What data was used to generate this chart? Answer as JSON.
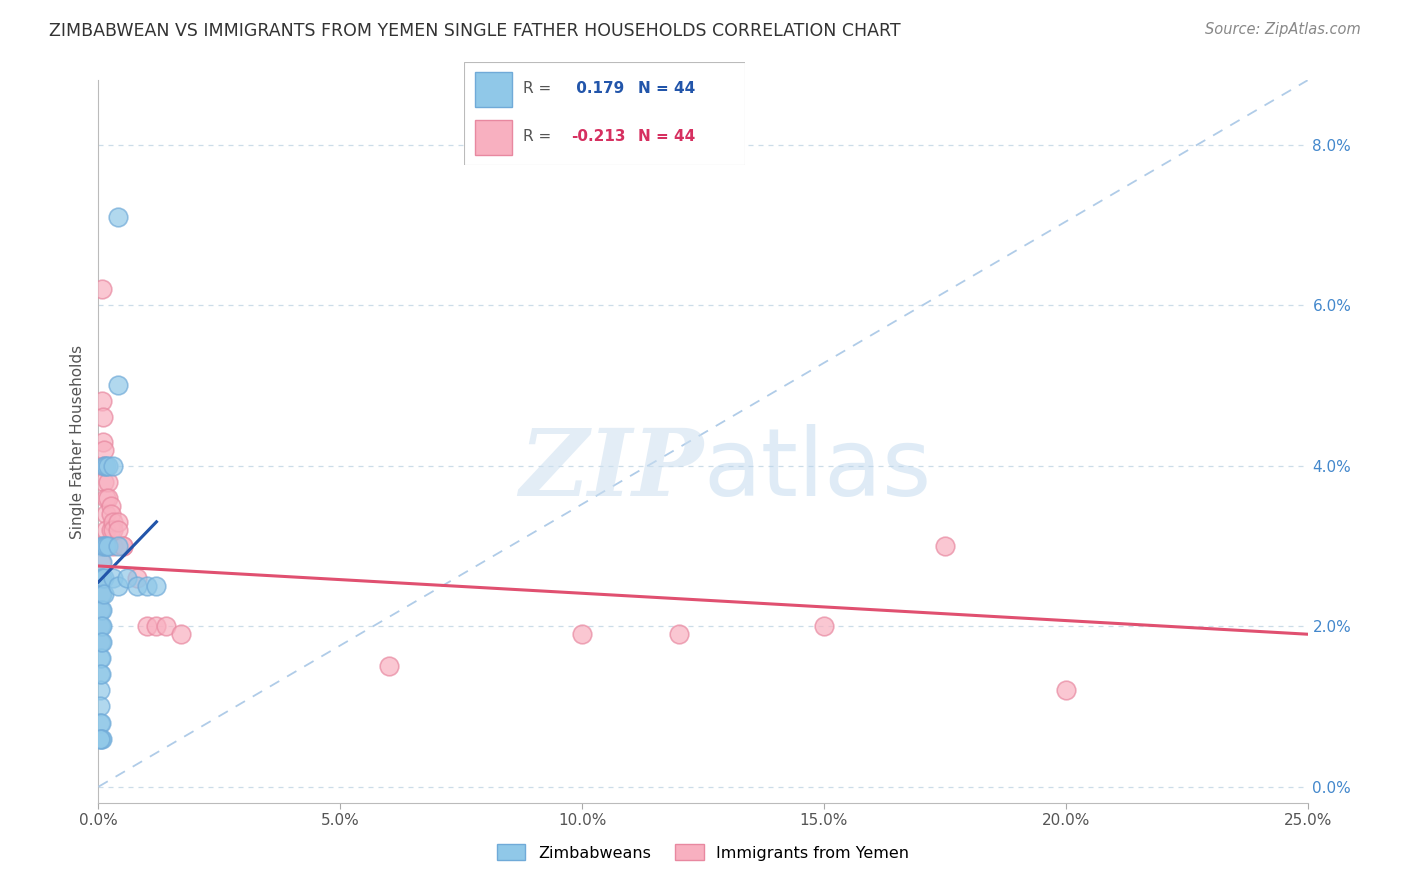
{
  "title": "ZIMBABWEAN VS IMMIGRANTS FROM YEMEN SINGLE FATHER HOUSEHOLDS CORRELATION CHART",
  "source": "Source: ZipAtlas.com",
  "ylabel": "Single Father Households",
  "xlim": [
    0.0,
    0.25
  ],
  "ylim": [
    -0.002,
    0.088
  ],
  "legend_blue_r": " 0.179",
  "legend_pink_r": "-0.213",
  "legend_n": "44",
  "blue_color": "#90c8e8",
  "blue_edge": "#70aad8",
  "pink_color": "#f8b0c0",
  "pink_edge": "#e888a0",
  "blue_line_color": "#2255aa",
  "pink_line_color": "#e05070",
  "diagonal_color": "#b0cce8",
  "xticks": [
    0.0,
    0.05,
    0.1,
    0.15,
    0.2,
    0.25
  ],
  "xticklabels": [
    "0.0%",
    "5.0%",
    "10.0%",
    "15.0%",
    "20.0%",
    "25.0%"
  ],
  "yticks": [
    0.0,
    0.02,
    0.04,
    0.06,
    0.08
  ],
  "yticklabels": [
    "0.0%",
    "2.0%",
    "4.0%",
    "6.0%",
    "8.0%"
  ],
  "blue_dots": [
    [
      0.0003,
      0.022
    ],
    [
      0.0003,
      0.02
    ],
    [
      0.0003,
      0.018
    ],
    [
      0.0003,
      0.016
    ],
    [
      0.0003,
      0.014
    ],
    [
      0.0003,
      0.012
    ],
    [
      0.0003,
      0.01
    ],
    [
      0.0003,
      0.008
    ],
    [
      0.0005,
      0.026
    ],
    [
      0.0005,
      0.024
    ],
    [
      0.0005,
      0.022
    ],
    [
      0.0005,
      0.02
    ],
    [
      0.0005,
      0.018
    ],
    [
      0.0005,
      0.016
    ],
    [
      0.0005,
      0.014
    ],
    [
      0.0008,
      0.03
    ],
    [
      0.0008,
      0.028
    ],
    [
      0.0008,
      0.026
    ],
    [
      0.0008,
      0.024
    ],
    [
      0.0008,
      0.022
    ],
    [
      0.0008,
      0.02
    ],
    [
      0.0008,
      0.018
    ],
    [
      0.0012,
      0.04
    ],
    [
      0.0012,
      0.03
    ],
    [
      0.0012,
      0.026
    ],
    [
      0.0012,
      0.024
    ],
    [
      0.0015,
      0.04
    ],
    [
      0.0015,
      0.03
    ],
    [
      0.002,
      0.04
    ],
    [
      0.002,
      0.03
    ],
    [
      0.003,
      0.04
    ],
    [
      0.003,
      0.026
    ],
    [
      0.004,
      0.03
    ],
    [
      0.004,
      0.025
    ],
    [
      0.006,
      0.026
    ],
    [
      0.008,
      0.025
    ],
    [
      0.01,
      0.025
    ],
    [
      0.012,
      0.025
    ],
    [
      0.004,
      0.05
    ],
    [
      0.004,
      0.071
    ],
    [
      0.0005,
      0.008
    ],
    [
      0.0005,
      0.006
    ],
    [
      0.0008,
      0.006
    ],
    [
      0.0003,
      0.006
    ]
  ],
  "pink_dots": [
    [
      0.0003,
      0.03
    ],
    [
      0.0003,
      0.026
    ],
    [
      0.0003,
      0.024
    ],
    [
      0.0003,
      0.022
    ],
    [
      0.0003,
      0.02
    ],
    [
      0.0003,
      0.018
    ],
    [
      0.0005,
      0.03
    ],
    [
      0.0005,
      0.028
    ],
    [
      0.0005,
      0.026
    ],
    [
      0.0008,
      0.062
    ],
    [
      0.0008,
      0.048
    ],
    [
      0.001,
      0.046
    ],
    [
      0.001,
      0.043
    ],
    [
      0.0012,
      0.042
    ],
    [
      0.0012,
      0.04
    ],
    [
      0.0012,
      0.038
    ],
    [
      0.0015,
      0.036
    ],
    [
      0.0015,
      0.034
    ],
    [
      0.0015,
      0.032
    ],
    [
      0.0015,
      0.03
    ],
    [
      0.002,
      0.038
    ],
    [
      0.002,
      0.036
    ],
    [
      0.0025,
      0.035
    ],
    [
      0.0025,
      0.034
    ],
    [
      0.0025,
      0.032
    ],
    [
      0.003,
      0.033
    ],
    [
      0.003,
      0.032
    ],
    [
      0.003,
      0.03
    ],
    [
      0.004,
      0.033
    ],
    [
      0.004,
      0.032
    ],
    [
      0.005,
      0.03
    ],
    [
      0.005,
      0.03
    ],
    [
      0.008,
      0.026
    ],
    [
      0.01,
      0.02
    ],
    [
      0.012,
      0.02
    ],
    [
      0.014,
      0.02
    ],
    [
      0.017,
      0.019
    ],
    [
      0.06,
      0.015
    ],
    [
      0.1,
      0.019
    ],
    [
      0.12,
      0.019
    ],
    [
      0.15,
      0.02
    ],
    [
      0.175,
      0.03
    ],
    [
      0.2,
      0.012
    ],
    [
      0.0005,
      0.024
    ]
  ],
  "blue_trend_x": [
    0.0,
    0.012
  ],
  "blue_trend_y": [
    0.0255,
    0.033
  ],
  "pink_trend_x": [
    0.0,
    0.25
  ],
  "pink_trend_y": [
    0.0275,
    0.019
  ]
}
